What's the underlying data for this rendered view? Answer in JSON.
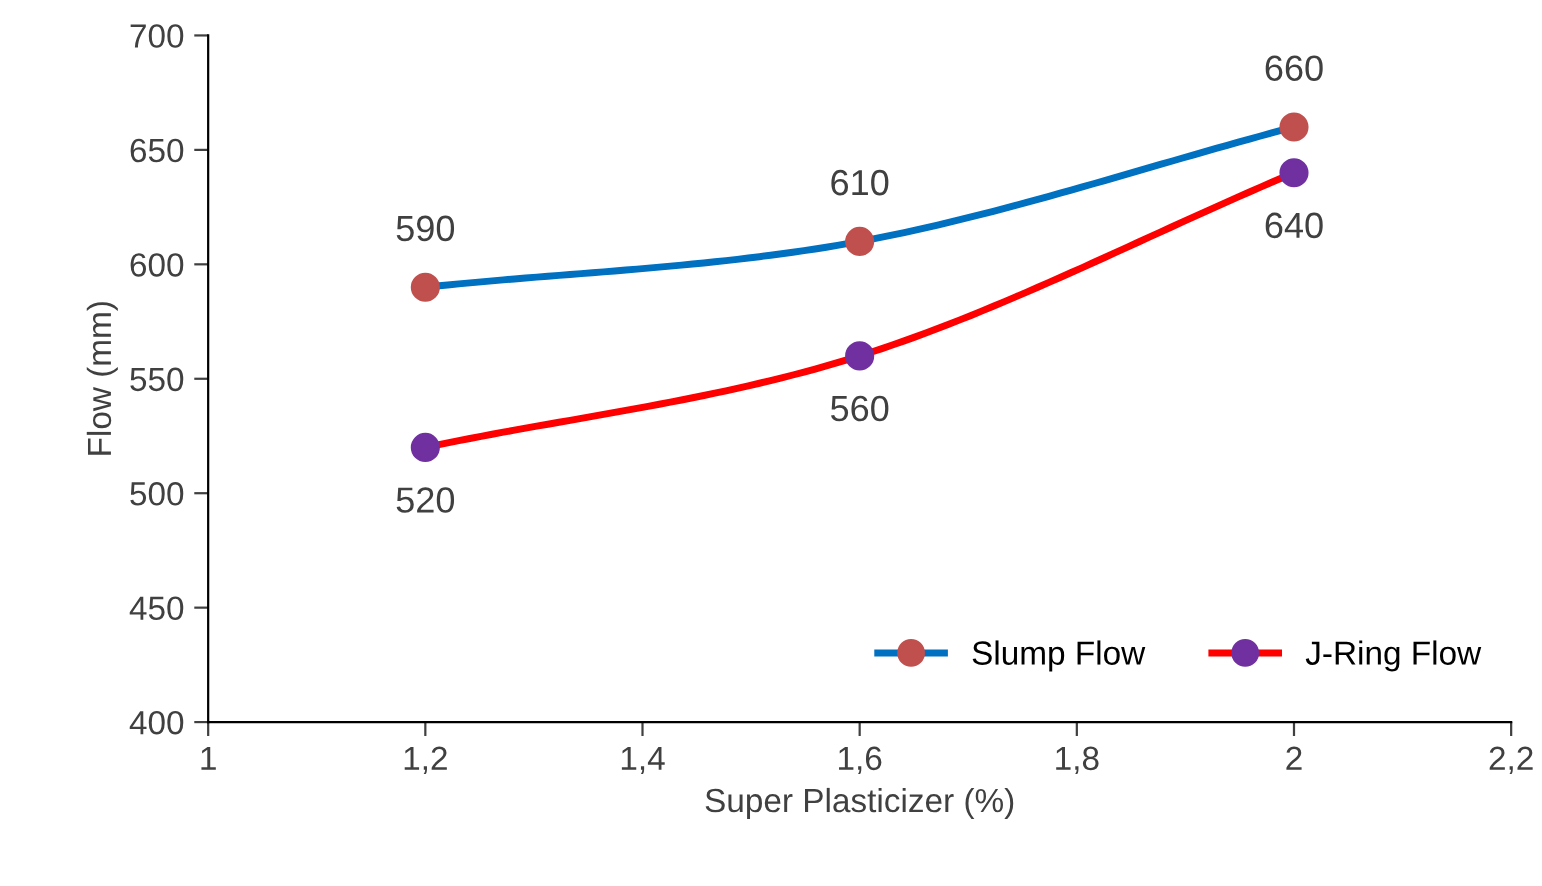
{
  "chart_data": {
    "type": "line",
    "xlabel": "Super Plasticizer (%)",
    "ylabel": "Flow (mm)",
    "x": [
      1.2,
      1.6,
      2
    ],
    "series": [
      {
        "name": "Slump Flow",
        "color": "#0070c0",
        "colors": [
          "#c0504d",
          "#c0504d",
          "#c0504d"
        ],
        "values": [
          590,
          610,
          660
        ]
      },
      {
        "name": "J-Ring Flow",
        "color": "#ff0000",
        "colors": [
          "#7030a0",
          "#7030a0",
          "#7030a0"
        ],
        "values": [
          520,
          560,
          640
        ]
      }
    ],
    "xlim": [
      1,
      2.2
    ],
    "xticks": [
      1,
      {
        "value": 1.2,
        "label": "1,2"
      },
      {
        "value": 1.4,
        "label": "1,4"
      },
      {
        "value": 1.6,
        "label": "1,6"
      },
      {
        "value": 1.8,
        "label": "1,8"
      },
      2,
      {
        "value": 2.2,
        "label": "2,2"
      }
    ],
    "ylim": [
      400,
      700
    ],
    "yticks": [
      400,
      450,
      500,
      550,
      600,
      650,
      700
    ],
    "data_labels": true,
    "legend": "bottom right",
    "marker": "circle",
    "line_style": "solid",
    "grid": false
  }
}
